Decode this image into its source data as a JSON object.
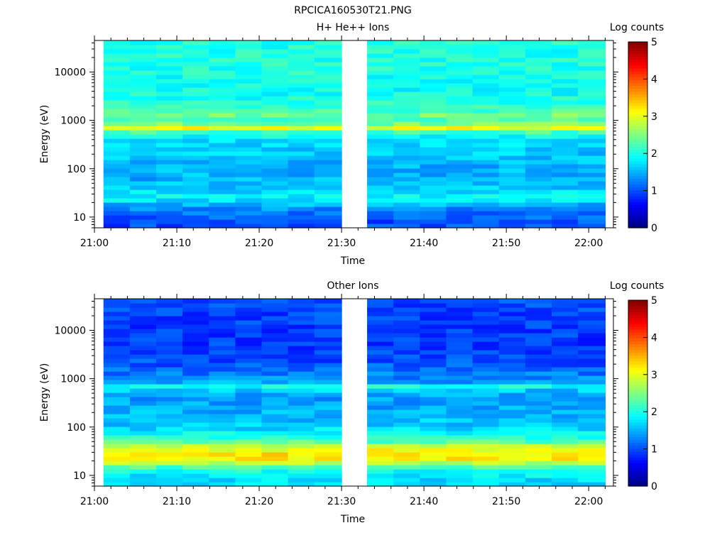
{
  "figure_title": "RPCICA160530T21.PNG",
  "chart_data": [
    {
      "type": "heatmap",
      "title": "H+ He++ Ions",
      "xlabel": "Time",
      "ylabel": "Energy (eV)",
      "x_tick_labels": [
        "21:00",
        "21:10",
        "21:20",
        "21:30",
        "21:40",
        "21:50",
        "22:00"
      ],
      "x_tick_minutes": [
        0,
        10,
        20,
        30,
        40,
        50,
        60
      ],
      "xlim_minutes": [
        0,
        63
      ],
      "y_scale": "log",
      "ylim": [
        6,
        45000
      ],
      "y_tick_labels": [
        "10",
        "100",
        "1000",
        "10000"
      ],
      "y_tick_values": [
        10,
        100,
        1000,
        10000
      ],
      "data_gaps_minutes": [
        [
          30.0,
          33.1
        ],
        [
          62.0,
          63.0
        ]
      ],
      "colorbar": {
        "label": "Log counts",
        "min": 0,
        "max": 5,
        "tick_labels": [
          "0",
          "1",
          "2",
          "3",
          "4",
          "5"
        ],
        "colormap": "jet"
      },
      "time_bins_minutes": [
        1.1,
        4.3,
        7.5,
        10.7,
        13.9,
        17.1,
        20.3,
        23.5,
        26.7,
        30.0,
        33.1,
        36.3,
        39.5,
        42.7,
        45.9,
        49.1,
        52.3,
        55.5,
        58.7,
        62.0
      ],
      "energy_profile": {
        "energy_eV": [
          6,
          8,
          10,
          13,
          16,
          20,
          25,
          30,
          40,
          55,
          80,
          120,
          200,
          350,
          550,
          650,
          720,
          800,
          1000,
          1400,
          1600,
          2500,
          5000,
          10000,
          20000,
          45000
        ],
        "log_counts": [
          1.0,
          1.0,
          1.1,
          1.2,
          1.4,
          1.6,
          1.9,
          1.8,
          1.6,
          1.5,
          1.5,
          1.5,
          1.6,
          1.7,
          2.0,
          2.8,
          3.1,
          2.6,
          2.2,
          2.5,
          2.2,
          2.0,
          1.9,
          2.0,
          2.0,
          2.0
        ]
      }
    },
    {
      "type": "heatmap",
      "title": "Other Ions",
      "xlabel": "Time",
      "ylabel": "Energy (eV)",
      "x_tick_labels": [
        "21:00",
        "21:10",
        "21:20",
        "21:30",
        "21:40",
        "21:50",
        "22:00"
      ],
      "x_tick_minutes": [
        0,
        10,
        20,
        30,
        40,
        50,
        60
      ],
      "xlim_minutes": [
        0,
        63
      ],
      "y_scale": "log",
      "ylim": [
        6,
        45000
      ],
      "y_tick_labels": [
        "10",
        "100",
        "1000",
        "10000"
      ],
      "y_tick_values": [
        10,
        100,
        1000,
        10000
      ],
      "data_gaps_minutes": [
        [
          30.0,
          33.1
        ],
        [
          62.0,
          63.0
        ]
      ],
      "colorbar": {
        "label": "Log counts",
        "min": 0,
        "max": 5,
        "tick_labels": [
          "0",
          "1",
          "2",
          "3",
          "4",
          "5"
        ],
        "colormap": "jet"
      },
      "time_bins_minutes": [
        1.1,
        4.3,
        7.5,
        10.7,
        13.9,
        17.1,
        20.3,
        23.5,
        26.7,
        30.0,
        33.1,
        36.3,
        39.5,
        42.7,
        45.9,
        49.1,
        52.3,
        55.5,
        58.7,
        62.0
      ],
      "energy_profile": {
        "energy_eV": [
          6,
          8,
          10,
          13,
          16,
          20,
          25,
          30,
          40,
          55,
          80,
          120,
          200,
          350,
          550,
          650,
          720,
          800,
          1000,
          1400,
          1600,
          2500,
          5000,
          10000,
          20000,
          45000
        ],
        "log_counts": [
          1.7,
          1.7,
          1.8,
          2.0,
          2.4,
          3.0,
          3.3,
          3.2,
          2.8,
          2.1,
          1.8,
          1.6,
          1.5,
          1.4,
          1.5,
          1.9,
          2.0,
          1.5,
          1.3,
          1.2,
          1.1,
          1.0,
          0.9,
          0.9,
          0.95,
          1.0
        ]
      }
    }
  ]
}
